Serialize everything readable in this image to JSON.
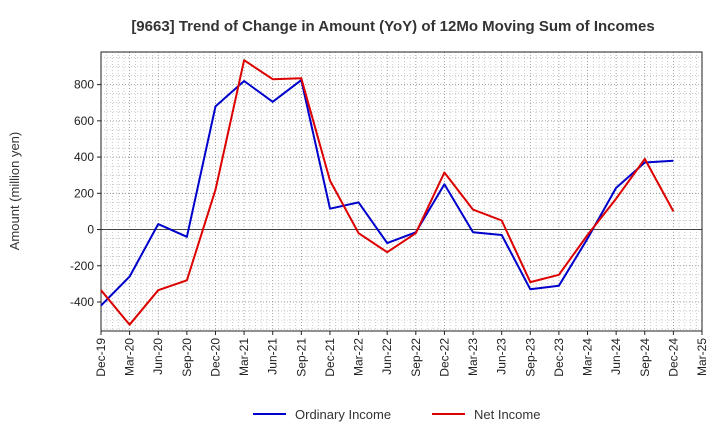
{
  "chart_data": {
    "type": "line",
    "title": "[9663]  Trend of Change in Amount (YoY) of 12Mo Moving Sum of Incomes",
    "ylabel": "Amount (million yen)",
    "xlabel": "",
    "ylim": [
      -560,
      980
    ],
    "yticks": [
      -400,
      -200,
      0,
      200,
      400,
      600,
      800
    ],
    "x": [
      "Dec-19",
      "Mar-20",
      "Jun-20",
      "Sep-20",
      "Dec-20",
      "Mar-21",
      "Jun-21",
      "Sep-21",
      "Dec-21",
      "Mar-22",
      "Jun-22",
      "Sep-22",
      "Dec-22",
      "Mar-23",
      "Jun-23",
      "Sep-23",
      "Dec-23",
      "Mar-24",
      "Jun-24",
      "Sep-24",
      "Dec-24",
      "Mar-25"
    ],
    "grid": true,
    "legend_position": "bottom-center",
    "series": [
      {
        "name": "Ordinary Income",
        "color": "#0000cc",
        "values": [
          -420,
          -260,
          30,
          -40,
          680,
          820,
          705,
          825,
          115,
          150,
          -75,
          -15,
          250,
          -15,
          -30,
          -330,
          -310,
          -50,
          230,
          370,
          380,
          null
        ]
      },
      {
        "name": "Net Income",
        "color": "#dd0000",
        "values": [
          -335,
          -525,
          -335,
          -280,
          220,
          935,
          830,
          835,
          270,
          -20,
          -125,
          -20,
          315,
          110,
          50,
          -290,
          -250,
          -30,
          170,
          390,
          100,
          null
        ]
      }
    ]
  }
}
